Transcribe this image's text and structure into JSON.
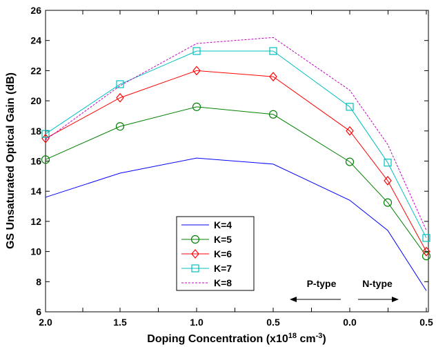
{
  "chart_data": {
    "type": "line",
    "xlabel": "Doping Concentration (x10",
    "xlabel_sup": "18",
    "xlabel_mid": " cm",
    "xlabel_sup2": "-3",
    "xlabel_end": ")",
    "ylabel": "GS Unsaturated Optical Gain (dB)",
    "x_tick_labels": [
      "2.0",
      "1.5",
      "1.0",
      "0.5",
      "0.0",
      "0.5"
    ],
    "y_tick_labels": [
      "6",
      "8",
      "10",
      "12",
      "14",
      "16",
      "18",
      "20",
      "22",
      "24",
      "26"
    ],
    "ylim": [
      6,
      26
    ],
    "x": [
      2.0,
      1.5,
      1.0,
      0.5,
      0.0,
      0.25,
      0.5
    ],
    "x_note": "x positions left-to-right; the last two points are N-type doping 0.25 and 0.5",
    "grid": false,
    "legend_position": "lower-center",
    "series": [
      {
        "name": "K=4",
        "color": "#0000ff",
        "dash": "solid",
        "marker": "none",
        "values": [
          13.6,
          15.2,
          16.2,
          15.8,
          13.4,
          11.4,
          7.4
        ]
      },
      {
        "name": "K=5",
        "color": "#008000",
        "dash": "solid",
        "marker": "circle",
        "values": [
          16.1,
          18.3,
          19.6,
          19.1,
          15.95,
          13.25,
          9.7
        ]
      },
      {
        "name": "K=6",
        "color": "#ff0000",
        "dash": "solid",
        "marker": "diamond",
        "values": [
          17.5,
          20.2,
          22.0,
          21.6,
          18.0,
          14.7,
          10.0
        ]
      },
      {
        "name": "K=7",
        "color": "#00bfbf",
        "dash": "solid",
        "marker": "square",
        "values": [
          17.8,
          21.1,
          23.3,
          23.3,
          19.6,
          15.9,
          10.9
        ]
      },
      {
        "name": "K=8",
        "color": "#bf00bf",
        "dash": "dashed",
        "marker": "none",
        "values": [
          17.4,
          21.0,
          23.8,
          24.2,
          20.7,
          17.1,
          11.4
        ]
      }
    ],
    "annotations": {
      "p_type": "P-type",
      "n_type": "N-type"
    }
  }
}
